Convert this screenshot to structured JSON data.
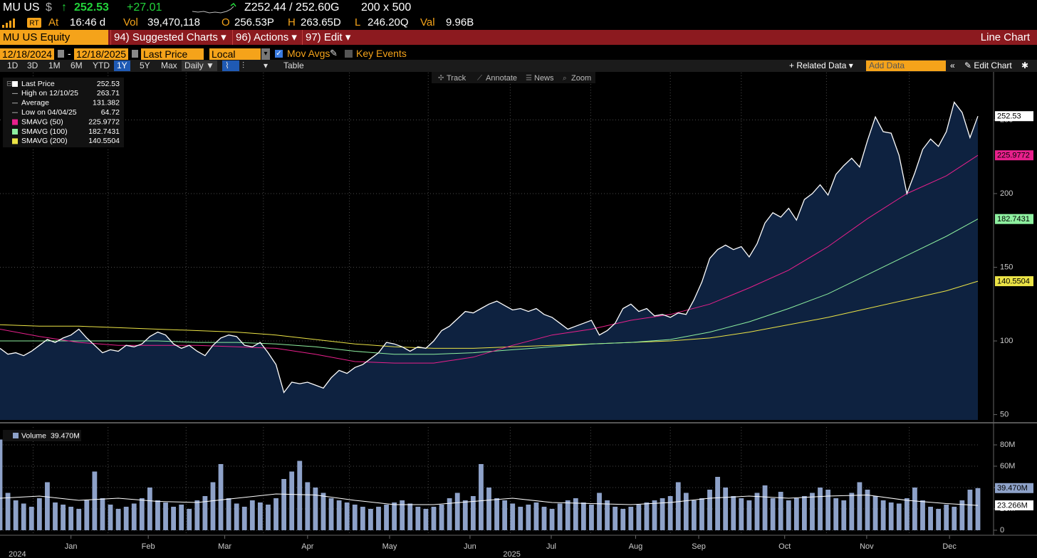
{
  "header": {
    "ticker": "MU US",
    "currency": "$",
    "arrow": "↑",
    "last": "252.53",
    "change": "+27.01",
    "bid_ask": "Z252.44 / 252.60G",
    "size": "200 x 500",
    "stats": [
      {
        "label": "At",
        "value": "16:46 d"
      },
      {
        "label": "Vol",
        "value": "39,470,118"
      },
      {
        "label": "O",
        "value": "256.53P"
      },
      {
        "label": "H",
        "value": "263.65D"
      },
      {
        "label": "L",
        "value": "246.20Q"
      },
      {
        "label": "Val",
        "value": "9.96B"
      }
    ]
  },
  "menu": {
    "security": "MU US Equity",
    "items": [
      "94) Suggested Charts",
      "96) Actions",
      "97) Edit"
    ],
    "chart_type": "Line Chart"
  },
  "controls": {
    "start": "12/18/2024",
    "separator": "-",
    "end": "12/18/2025",
    "field": "Last Price",
    "currency": "Local CCY",
    "mov_avgs": "Mov Avgs",
    "key_events": "Key Events",
    "ranges": [
      "1D",
      "3D",
      "1M",
      "6M",
      "YTD",
      "1Y",
      "5Y",
      "Max"
    ],
    "active_range": 5,
    "frequency": "Daily",
    "table": "Table",
    "related": "Related Data",
    "add_data": "Add Data",
    "edit_chart": "Edit Chart"
  },
  "tools": [
    "Track",
    "Annotate",
    "News",
    "Zoom"
  ],
  "chart_data": [
    {
      "type": "line",
      "area_fill": "#0e2240",
      "grid": true,
      "xlim": [
        0,
        124
      ],
      "ylim": [
        46.4,
        282.1
      ],
      "yticks": [
        50,
        100,
        150,
        200,
        250
      ],
      "xgrid": [
        4.2,
        13.7,
        23.6,
        33.4,
        44.3,
        54.3,
        64.7,
        74.9,
        85,
        94,
        104.8,
        115.3
      ],
      "xticks": [
        {
          "value": 9,
          "label": "Jan"
        },
        {
          "value": 18.8,
          "label": "Feb"
        },
        {
          "value": 28.5,
          "label": "Mar"
        },
        {
          "value": 39,
          "label": "Apr"
        },
        {
          "value": 49.4,
          "label": "May"
        },
        {
          "value": 59.6,
          "label": "Jun"
        },
        {
          "value": 69.9,
          "label": "Jul"
        },
        {
          "value": 80.6,
          "label": "Aug"
        },
        {
          "value": 88.6,
          "label": "Sep"
        },
        {
          "value": 99.5,
          "label": "Oct"
        },
        {
          "value": 109.9,
          "label": "Nov"
        },
        {
          "value": 120.4,
          "label": "Dec"
        }
      ],
      "year_ticks": [
        {
          "value": 2.2,
          "label": "2024"
        },
        {
          "value": 64.9,
          "label": "2025"
        }
      ],
      "stats": [
        {
          "label": "High on 12/10/25",
          "value": 263.71
        },
        {
          "label": "Average",
          "value": 131.382
        },
        {
          "label": "Low on 04/04/25",
          "value": 64.72
        }
      ],
      "series": [
        {
          "name": "Last Price",
          "color": "#ffffff",
          "values": [
            95,
            91,
            92,
            90,
            93,
            97,
            101,
            99,
            102,
            104,
            108,
            102,
            97,
            92,
            94,
            93,
            97,
            96,
            98,
            103,
            106,
            104,
            98,
            95,
            97,
            93,
            90,
            97,
            102,
            104,
            103,
            97,
            96,
            99,
            92,
            84,
            65,
            72,
            71,
            72,
            70,
            68,
            75,
            80,
            78,
            82,
            84,
            88,
            92,
            99,
            98,
            96,
            93,
            96,
            95,
            100,
            107,
            110,
            115,
            120,
            119,
            122,
            125,
            127,
            124,
            121,
            122,
            120,
            122,
            118,
            116,
            112,
            108,
            110,
            112,
            114,
            104,
            107,
            112,
            122,
            125,
            120,
            122,
            117,
            118,
            116,
            119,
            118,
            128,
            140,
            156,
            162,
            165,
            162,
            164,
            157,
            166,
            180,
            187,
            184,
            190,
            182,
            196,
            200,
            206,
            199,
            213,
            219,
            224,
            218,
            236,
            252,
            242,
            241,
            226,
            200,
            214,
            230,
            237,
            232,
            242,
            262,
            255,
            238,
            252.53
          ]
        },
        {
          "name": "SMAVG (50)",
          "color": "#e8208c",
          "x": [
            0,
            5,
            10,
            15,
            20,
            25,
            30,
            35,
            40,
            45,
            50,
            55,
            60,
            65,
            70,
            75,
            80,
            85,
            90,
            95,
            100,
            105,
            110,
            115,
            120,
            124
          ],
          "values": [
            108,
            103,
            99,
            97,
            97,
            97,
            96,
            95,
            91,
            86,
            85,
            85,
            89,
            97,
            104,
            108,
            114,
            118,
            125,
            136,
            148,
            164,
            183,
            200,
            212,
            225.9772
          ]
        },
        {
          "name": "SMAVG (100)",
          "color": "#8ef0a0",
          "x": [
            0,
            5,
            10,
            15,
            20,
            25,
            30,
            35,
            40,
            45,
            50,
            55,
            60,
            65,
            70,
            75,
            80,
            85,
            90,
            95,
            100,
            105,
            110,
            115,
            120,
            124
          ],
          "values": [
            100,
            100,
            100,
            100,
            100,
            99,
            99,
            98,
            96,
            93,
            91,
            91,
            92,
            94,
            96,
            98,
            99,
            101,
            106,
            113,
            122,
            132,
            145,
            158,
            171,
            182.7431
          ]
        },
        {
          "name": "SMAVG (200)",
          "color": "#ece446",
          "x": [
            0,
            5,
            10,
            15,
            20,
            25,
            30,
            35,
            40,
            45,
            50,
            55,
            60,
            65,
            70,
            75,
            80,
            85,
            90,
            95,
            100,
            105,
            110,
            115,
            120,
            124
          ],
          "values": [
            111,
            110,
            110,
            109,
            108,
            107,
            106,
            104,
            101,
            98,
            96,
            95,
            95,
            96,
            97,
            98,
            99,
            100,
            102,
            106,
            111,
            116,
            122,
            128,
            134,
            140.5504
          ]
        }
      ]
    },
    {
      "type": "bar",
      "grid": true,
      "xlim": [
        0,
        124
      ],
      "ylim": [
        -4.7,
        96.7
      ],
      "yticks": [
        0,
        {
          "value": 20,
          "label": "20M"
        },
        {
          "value": 40,
          "label": "40M"
        },
        {
          "value": 60,
          "label": "60M"
        },
        {
          "value": 80,
          "label": "80M"
        }
      ],
      "series": [
        {
          "name": "Volume",
          "color": "#8ea2c9",
          "values": [
            85,
            35,
            28,
            25,
            22,
            30,
            45,
            26,
            24,
            22,
            20,
            28,
            55,
            30,
            24,
            20,
            22,
            25,
            30,
            40,
            28,
            26,
            22,
            24,
            20,
            28,
            32,
            45,
            62,
            30,
            25,
            22,
            28,
            26,
            24,
            30,
            48,
            55,
            65,
            45,
            40,
            35,
            30,
            28,
            26,
            24,
            22,
            20,
            22,
            24,
            26,
            28,
            25,
            22,
            20,
            22,
            24,
            30,
            35,
            28,
            32,
            62,
            40,
            30,
            28,
            25,
            22,
            24,
            26,
            22,
            20,
            25,
            28,
            30,
            26,
            24,
            35,
            28,
            22,
            20,
            22,
            24,
            26,
            28,
            30,
            32,
            45,
            35,
            28,
            30,
            38,
            50,
            40,
            32,
            30,
            28,
            35,
            42,
            30,
            36,
            28,
            30,
            32,
            35,
            40,
            38,
            30,
            28,
            35,
            45,
            38,
            32,
            28,
            26,
            25,
            30,
            40,
            28,
            22,
            20,
            24,
            22,
            28,
            38,
            39.47
          ],
          "value_labels": [
            null,
            null,
            null,
            null,
            null,
            null,
            null,
            null,
            null,
            null,
            null,
            null,
            null,
            null,
            null,
            null,
            null,
            null,
            null,
            null,
            null,
            null,
            null,
            null,
            null,
            null,
            null,
            null,
            null,
            null,
            null,
            null,
            null,
            null,
            null,
            null,
            null,
            null,
            null,
            null,
            null,
            null,
            null,
            null,
            null,
            null,
            null,
            null,
            null,
            null,
            null,
            null,
            null,
            null,
            null,
            null,
            null,
            null,
            null,
            null,
            null,
            null,
            null,
            null,
            null,
            null,
            null,
            null,
            null,
            null,
            null,
            null,
            null,
            null,
            null,
            null,
            null,
            null,
            null,
            null,
            null,
            null,
            null,
            null,
            null,
            null,
            null,
            null,
            null,
            null,
            null,
            null,
            null,
            null,
            null,
            null,
            null,
            null,
            null,
            null,
            null,
            null,
            null,
            null,
            null,
            null,
            null,
            null,
            null,
            null,
            null,
            null,
            null,
            null,
            null,
            null,
            null,
            null,
            null,
            null,
            null,
            null,
            null,
            null,
            "39.470M"
          ]
        },
        {
          "type": "line",
          "color": "#ffffff",
          "x": [
            0,
            5,
            10,
            15,
            20,
            25,
            30,
            35,
            40,
            45,
            50,
            55,
            60,
            65,
            70,
            75,
            80,
            85,
            90,
            95,
            100,
            105,
            110,
            115,
            120,
            124
          ],
          "values": [
            30,
            32,
            28,
            30,
            27,
            26,
            30,
            34,
            33,
            28,
            24,
            24,
            27,
            30,
            26,
            25,
            24,
            26,
            30,
            32,
            30,
            32,
            33,
            28,
            25,
            23.266
          ],
          "value_labels": [
            null,
            null,
            null,
            null,
            null,
            null,
            null,
            null,
            null,
            null,
            null,
            null,
            null,
            null,
            null,
            null,
            null,
            null,
            null,
            null,
            null,
            null,
            null,
            null,
            null,
            "23.266M"
          ]
        }
      ]
    }
  ]
}
